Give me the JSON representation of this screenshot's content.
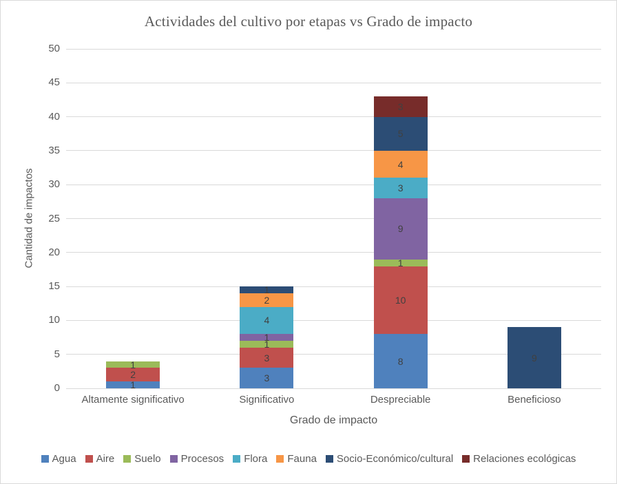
{
  "chart_data": {
    "type": "bar",
    "stacked": true,
    "title": "Actividades del cultivo por etapas vs Grado de impacto",
    "xlabel": "Grado de impacto",
    "ylabel": "Cantidad de impactos",
    "categories": [
      "Altamente significativo",
      "Significativo",
      "Despreciable",
      "Beneficioso"
    ],
    "series": [
      {
        "name": "Agua",
        "color": "#4F81BD",
        "values": [
          1,
          3,
          8,
          0
        ]
      },
      {
        "name": "Aire",
        "color": "#C0504D",
        "values": [
          2,
          3,
          10,
          0
        ]
      },
      {
        "name": "Suelo",
        "color": "#9BBB59",
        "values": [
          1,
          1,
          1,
          0
        ]
      },
      {
        "name": "Procesos",
        "color": "#8064A2",
        "values": [
          0,
          1,
          9,
          0
        ]
      },
      {
        "name": "Flora",
        "color": "#4BACC6",
        "values": [
          0,
          4,
          3,
          0
        ]
      },
      {
        "name": "Fauna",
        "color": "#F79646",
        "values": [
          0,
          2,
          4,
          0
        ]
      },
      {
        "name": "Socio-Económico/cultural",
        "color": "#2C4D75",
        "values": [
          0,
          1,
          5,
          9
        ]
      },
      {
        "name": "Relaciones ecológicas",
        "color": "#772C2A",
        "values": [
          0,
          0,
          3,
          0
        ]
      }
    ],
    "totals": [
      4,
      15,
      43,
      9
    ],
    "ylim": [
      0,
      50
    ],
    "ytick_step": 5,
    "data_labels": true,
    "grid": true,
    "legend_position": "bottom",
    "colors": {
      "gridline": "#d9d9d9",
      "axis_text": "#595959",
      "title_text": "#595959",
      "data_label_text": "#404040",
      "background": "#ffffff"
    }
  }
}
